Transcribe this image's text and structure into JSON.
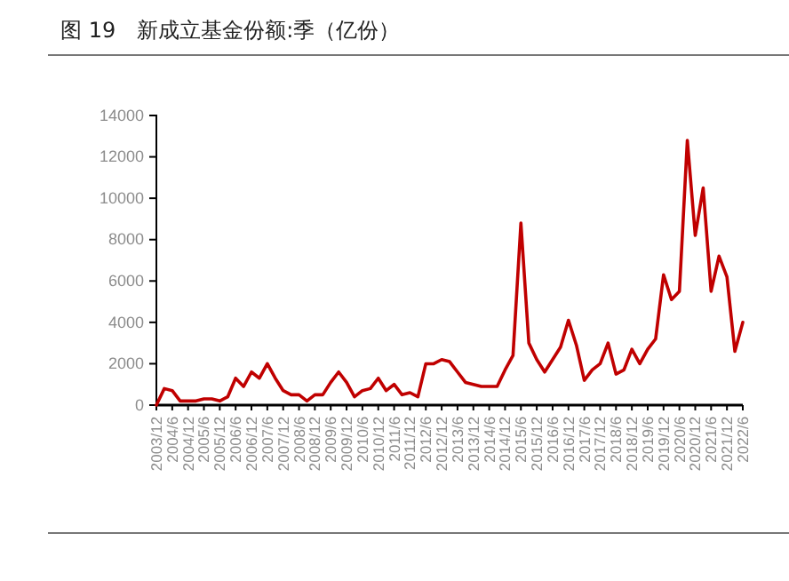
{
  "chart_data": {
    "type": "line",
    "title": "图 19　新成立基金份额:季（亿份）",
    "categories": [
      "2003/12",
      null,
      "2004/6",
      null,
      "2004/12",
      null,
      "2005/6",
      null,
      "2005/12",
      null,
      "2006/6",
      null,
      "2006/12",
      null,
      "2007/6",
      null,
      "2007/12",
      null,
      "2008/6",
      null,
      "2008/12",
      null,
      "2009/6",
      null,
      "2009/12",
      null,
      "2010/6",
      null,
      "2010/12",
      null,
      "2011/6",
      null,
      "2011/12",
      null,
      "2012/6",
      null,
      "2012/12",
      null,
      "2013/6",
      null,
      "2013/12",
      null,
      "2014/6",
      null,
      "2014/12",
      null,
      "2015/6",
      null,
      "2015/12",
      null,
      "2016/6",
      null,
      "2016/12",
      null,
      "2017/6",
      null,
      "2017/12",
      null,
      "2018/6",
      null,
      "2018/12",
      null,
      "2019/6",
      null,
      "2019/12",
      null,
      "2020/6",
      null,
      "2020/12",
      null,
      "2021/6",
      null,
      "2021/12",
      null,
      "2022/6"
    ],
    "series": [
      {
        "color": "#c00000",
        "values": [
          0,
          800,
          700,
          200,
          200,
          200,
          300,
          300,
          200,
          400,
          1300,
          900,
          1600,
          1300,
          2000,
          1300,
          700,
          500,
          500,
          200,
          500,
          500,
          1100,
          1600,
          1100,
          400,
          700,
          800,
          1300,
          700,
          1000,
          500,
          600,
          400,
          2000,
          2000,
          2200,
          2100,
          1600,
          1100,
          1000,
          900,
          900,
          900,
          1700,
          2400,
          8800,
          3000,
          2200,
          1600,
          2200,
          2800,
          4100,
          2900,
          1200,
          1700,
          2000,
          3000,
          1500,
          1700,
          2700,
          2000,
          2700,
          3200,
          6300,
          5100,
          5500,
          12800,
          8200,
          10500,
          5500,
          7200,
          6200,
          2600,
          4000
        ]
      }
    ],
    "ylim": [
      0,
      14000
    ],
    "yticks": [
      0,
      2000,
      4000,
      6000,
      8000,
      10000,
      12000,
      14000
    ],
    "grid": false,
    "marker": "none",
    "line_style": "solid"
  }
}
